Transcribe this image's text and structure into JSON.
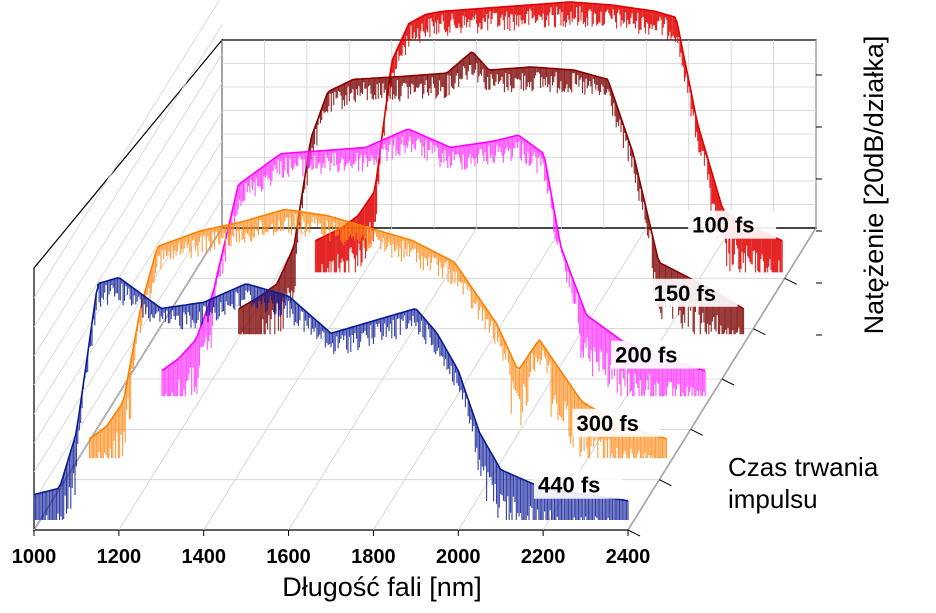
{
  "chart_data": {
    "type": "line",
    "title": "",
    "xlabel": "Długość fali [nm]",
    "ylabel": "Natężenie [20dB/działka]",
    "zlabel_line1": "Czas trwania",
    "zlabel_line2": "impulsu",
    "xlim": [
      1000,
      2400
    ],
    "x_ticks": [
      "1000",
      "1200",
      "1400",
      "1600",
      "1800",
      "2000",
      "2200",
      "2400"
    ],
    "grid": true,
    "series": [
      {
        "name": "100 fs",
        "color": "#e00000",
        "noise_color": "#e00000",
        "x": [
          1300,
          1360,
          1400,
          1440,
          1480,
          1520,
          1560,
          1600,
          1700,
          1800,
          1900,
          2000,
          2100,
          2150,
          2200,
          2260,
          2300,
          2400
        ],
        "y": [
          -78,
          -74,
          -70,
          -62,
          -20,
          -8,
          -5,
          -4,
          -3,
          -2,
          -1,
          -2,
          -4,
          -6,
          -40,
          -68,
          -72,
          -78
        ]
      },
      {
        "name": "150 fs",
        "color": "#8b0000",
        "noise_color": "#7a0000",
        "x": [
          1210,
          1260,
          1300,
          1340,
          1380,
          1420,
          1480,
          1600,
          1700,
          1760,
          1800,
          1900,
          2000,
          2080,
          2140,
          2200,
          2300,
          2400
        ],
        "y": [
          -80,
          -76,
          -72,
          -60,
          -25,
          -10,
          -6,
          -5,
          -4,
          3,
          -3,
          -2,
          -3,
          -6,
          -30,
          -65,
          -72,
          -80
        ]
      },
      {
        "name": "200 fs",
        "color": "#ff00ff",
        "noise_color": "#ff33ff",
        "x": [
          1120,
          1160,
          1200,
          1240,
          1300,
          1400,
          1500,
          1600,
          1700,
          1800,
          1900,
          1960,
          2020,
          2060,
          2120,
          2200,
          2300,
          2400
        ],
        "y": [
          -80,
          -76,
          -70,
          -55,
          -20,
          -10,
          -9,
          -8,
          -2,
          -8,
          -6,
          -4,
          -10,
          -40,
          -62,
          -70,
          -76,
          -80
        ]
      },
      {
        "name": "300 fs",
        "color": "#ff8000",
        "noise_color": "#ff8c1a",
        "x": [
          1040,
          1080,
          1120,
          1160,
          1200,
          1300,
          1400,
          1500,
          1600,
          1700,
          1800,
          1900,
          2000,
          2050,
          2100,
          2200,
          2300,
          2400
        ],
        "y": [
          -82,
          -78,
          -70,
          -40,
          -20,
          -15,
          -12,
          -8,
          -10,
          -14,
          -18,
          -25,
          -45,
          -60,
          -50,
          -70,
          -78,
          -82
        ]
      },
      {
        "name": "440 fs",
        "color": "#0a1a96",
        "noise_color": "#0a1a96",
        "x": [
          1000,
          1060,
          1100,
          1150,
          1200,
          1300,
          1400,
          1500,
          1600,
          1700,
          1800,
          1900,
          1950,
          2000,
          2050,
          2100,
          2200,
          2400
        ],
        "y": [
          -80,
          -78,
          -60,
          -12,
          -10,
          -20,
          -18,
          -12,
          -16,
          -28,
          -24,
          -20,
          -28,
          -40,
          -60,
          -72,
          -78,
          -82
        ]
      }
    ]
  }
}
